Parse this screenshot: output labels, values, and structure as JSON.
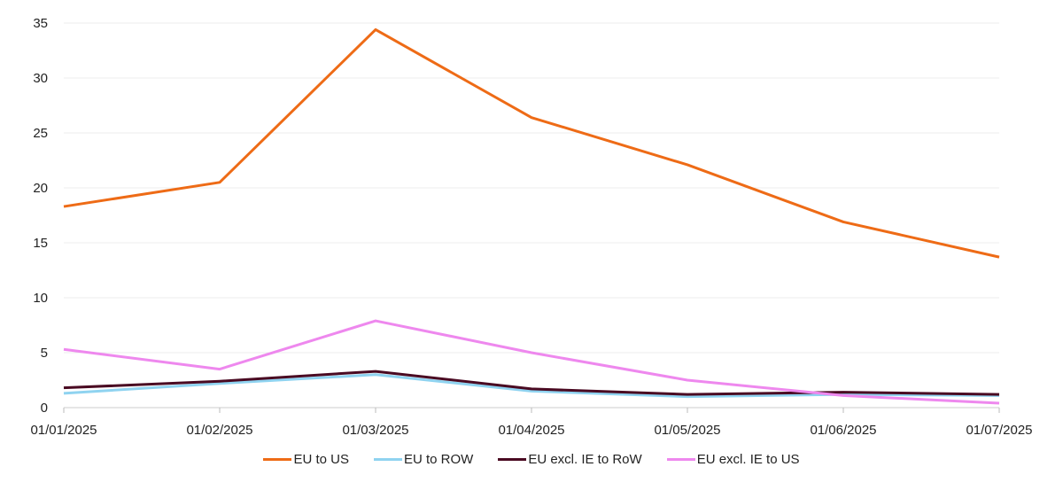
{
  "chart_data": {
    "type": "line",
    "title": "",
    "xlabel": "",
    "ylabel": "",
    "x": [
      "01/01/2025",
      "01/02/2025",
      "01/03/2025",
      "01/04/2025",
      "01/05/2025",
      "01/06/2025",
      "01/07/2025"
    ],
    "ylim": [
      0,
      35
    ],
    "yticks": [
      0,
      5,
      10,
      15,
      20,
      25,
      30,
      35
    ],
    "grid": true,
    "legend_position": "bottom-center",
    "series": [
      {
        "name": "EU to US",
        "color": "#ee6b16",
        "values": [
          18.3,
          20.5,
          34.4,
          26.4,
          22.1,
          16.9,
          13.7
        ]
      },
      {
        "name": "EU to ROW",
        "color": "#8fd3f0",
        "values": [
          1.3,
          2.2,
          3.0,
          1.5,
          1.0,
          1.2,
          1.1
        ]
      },
      {
        "name": "EU excl. IE to RoW",
        "color": "#4a0a22",
        "values": [
          1.8,
          2.4,
          3.3,
          1.7,
          1.2,
          1.4,
          1.2
        ]
      },
      {
        "name": "EU excl. IE to US",
        "color": "#ee88ee",
        "values": [
          5.3,
          3.5,
          7.9,
          5.0,
          2.5,
          1.1,
          0.4
        ]
      }
    ]
  }
}
